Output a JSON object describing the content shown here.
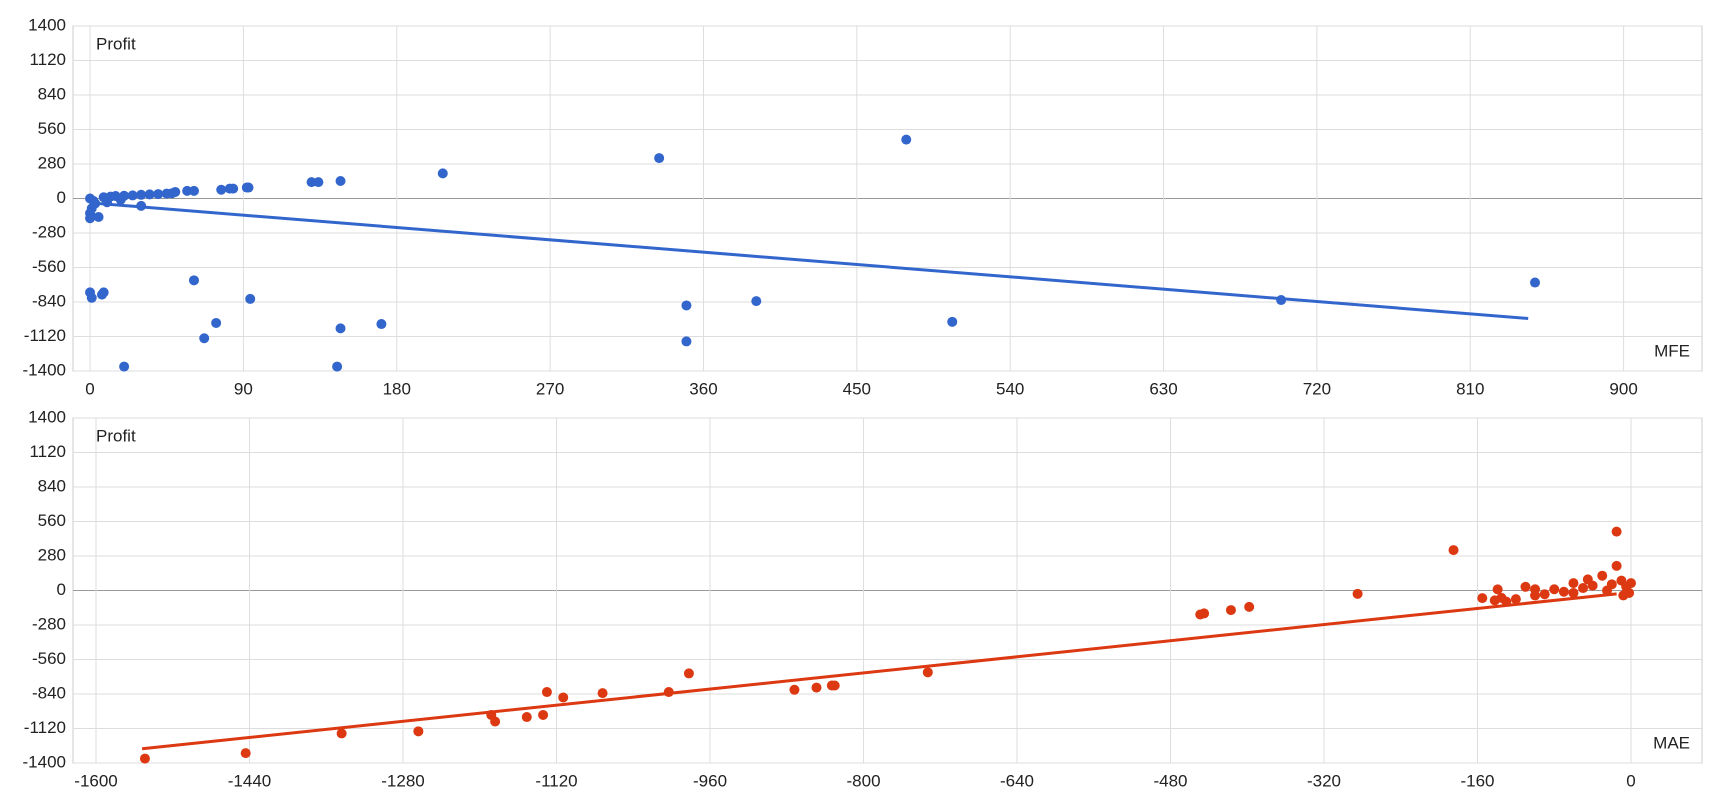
{
  "chart_data": [
    {
      "type": "scatter",
      "ylabel": "Profit",
      "xlabel": "MFE",
      "color": "#3366cc",
      "grid": true,
      "xlim": [
        -10,
        946
      ],
      "xticks": [
        0,
        90,
        180,
        270,
        360,
        450,
        540,
        630,
        720,
        810,
        900
      ],
      "ylim": [
        -1400,
        1400
      ],
      "yticks": [
        1400,
        1120,
        840,
        560,
        280,
        0,
        -280,
        -560,
        -840,
        -1120,
        -1400
      ],
      "x": [
        479,
        334,
        207,
        147,
        134,
        130,
        93,
        92,
        84,
        82,
        77,
        61,
        57,
        50,
        0,
        2,
        3,
        1,
        0,
        0,
        5,
        8,
        12,
        15,
        20,
        25,
        30,
        35,
        40,
        45,
        48,
        30,
        18,
        10,
        848,
        699,
        391,
        350,
        350,
        506,
        171,
        147,
        145,
        94,
        74,
        67,
        61,
        20,
        8,
        7,
        0,
        1
      ],
      "values": [
        478,
        328,
        204,
        142,
        133,
        133,
        89,
        89,
        80,
        80,
        71,
        62,
        62,
        53,
        0,
        -20,
        -40,
        -80,
        -120,
        -160,
        -150,
        10,
        15,
        20,
        22,
        25,
        30,
        33,
        36,
        40,
        42,
        -60,
        -10,
        -30,
        -682,
        -824,
        -833,
        -868,
        -1160,
        -1001,
        -1019,
        -1054,
        -1364,
        -815,
        -1010,
        -1134,
        -664,
        -1364,
        -762,
        -780,
        -762,
        -806
      ],
      "trendline": {
        "x": [
          0,
          844
        ],
        "values": [
          -35,
          -974
        ]
      }
    },
    {
      "type": "scatter",
      "ylabel": "Profit",
      "xlabel": "MAE",
      "color": "#dc3912",
      "grid": true,
      "xlim": [
        -1624,
        74
      ],
      "xticks": [
        -1600,
        -1440,
        -1280,
        -1120,
        -960,
        -800,
        -640,
        -480,
        -320,
        -160,
        0
      ],
      "ylim": [
        -1400,
        1400
      ],
      "yticks": [
        1400,
        1120,
        840,
        560,
        280,
        0,
        -280,
        -560,
        -840,
        -1120,
        -1400
      ],
      "x": [
        -15,
        -185,
        -285,
        -398,
        -417,
        -445,
        -449,
        -733,
        -833,
        -830,
        -849,
        -872,
        -982,
        -1003,
        -1072,
        -1113,
        -1130,
        -1134,
        -1151,
        -1184,
        -1188,
        -1264,
        -1344,
        -1444,
        -1549,
        -155,
        -139,
        -142,
        -130,
        -120,
        -110,
        -100,
        -90,
        -80,
        -70,
        -60,
        -50,
        -45,
        -40,
        -30,
        -25,
        -20,
        -15,
        -10,
        -5,
        -2,
        0,
        -8,
        -60,
        -100,
        -135
      ],
      "values": [
        478,
        328,
        -27,
        -133,
        -159,
        -186,
        -195,
        -664,
        -771,
        -771,
        -788,
        -806,
        -673,
        -824,
        -833,
        -868,
        -824,
        -1010,
        -1027,
        -1063,
        -1010,
        -1143,
        -1160,
        -1320,
        -1364,
        -62,
        9,
        -80,
        -90,
        -70,
        30,
        -40,
        -30,
        10,
        -10,
        60,
        20,
        90,
        40,
        120,
        0,
        50,
        200,
        80,
        30,
        -20,
        60,
        -40,
        -20,
        10,
        -60
      ],
      "trendline": {
        "x": [
          -1552,
          -15
        ],
        "values": [
          -1284,
          -27
        ]
      }
    }
  ]
}
